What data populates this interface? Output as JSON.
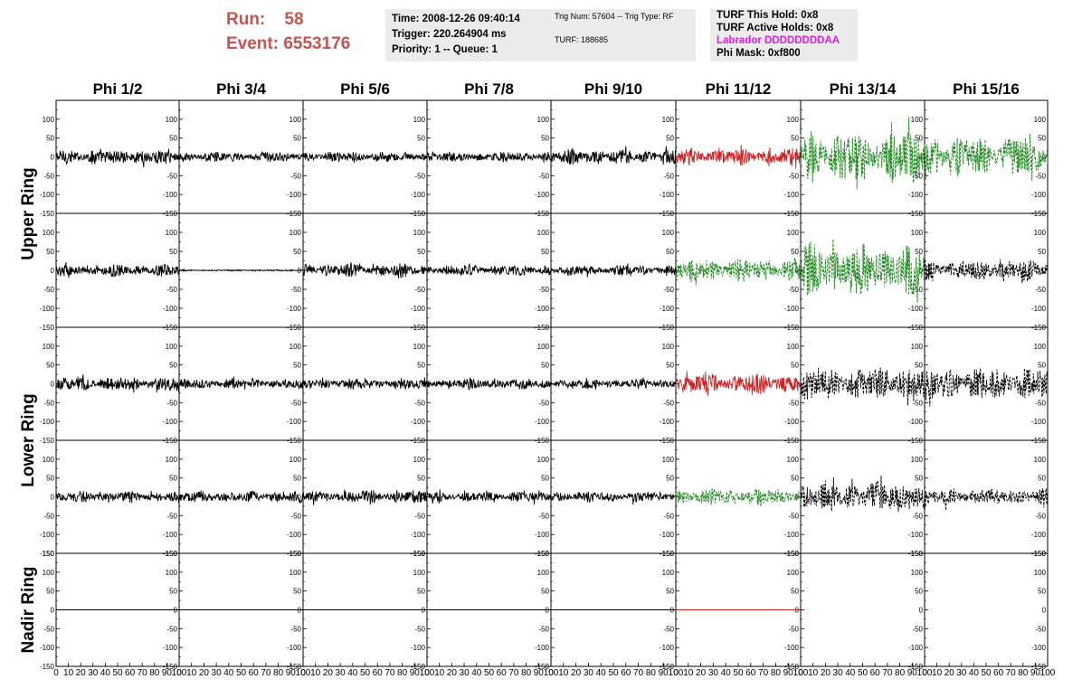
{
  "header": {
    "run_label": "Run:",
    "run_value": "58",
    "event_label": "Event:",
    "event_value": "6553176"
  },
  "info1": {
    "time": "Time: 2008-12-26 09:40:14",
    "trigger": "Trigger: 220.264904 ms",
    "priority": "Priority: 1 -- Queue: 1"
  },
  "info2": {
    "trig": "Trig Num: 57604 -- Trig Type: RF",
    "turf": "TURF: 188685"
  },
  "info3": {
    "hold": "TURF This Hold: 0x8",
    "active": "TURF Active Holds: 0x8",
    "labrador": "Labrador DDDDDDDDAA",
    "phimask": "Phi Mask: 0xf800"
  },
  "colors": {
    "header_red": "#c9534f",
    "trace_black": "#000000",
    "trace_red": "#cc2222",
    "trace_green": "#1e8a1e",
    "labrador_magenta": "#e020e0"
  },
  "chart_data": {
    "type": "line",
    "columns": [
      "Phi 1/2",
      "Phi 3/4",
      "Phi 5/6",
      "Phi 7/8",
      "Phi 9/10",
      "Phi 11/12",
      "Phi 13/14",
      "Phi 15/16"
    ],
    "rows": [
      "Upper Ring",
      "Upper Ring",
      "Lower Ring",
      "Lower Ring",
      "Nadir Ring"
    ],
    "ylim": [
      -150,
      150
    ],
    "xlim": [
      0,
      100
    ],
    "y_ticks": [
      -150,
      -100,
      -50,
      0,
      50,
      100,
      150
    ],
    "x_ticks": [
      0,
      10,
      20,
      30,
      40,
      50,
      60,
      70,
      80,
      90,
      100
    ],
    "x_tick_labels": [
      "0",
      "10",
      "20",
      "30",
      "40",
      "50",
      "60",
      "70",
      "80",
      "90",
      "100"
    ],
    "traces": [
      [
        {
          "style": "black",
          "amp": 20
        },
        {
          "style": "black",
          "amp": 13
        },
        {
          "style": "black",
          "amp": 14
        },
        {
          "style": "black",
          "amp": 14
        },
        {
          "style": "black",
          "amp": 20
        },
        {
          "style": "red",
          "amp": 22
        },
        {
          "style": "green",
          "amp": 70
        },
        {
          "style": "green",
          "amp": 55
        }
      ],
      [
        {
          "style": "black",
          "amp": 16
        },
        {
          "style": "black",
          "amp": 2
        },
        {
          "style": "black",
          "amp": 18
        },
        {
          "style": "black",
          "amp": 15
        },
        {
          "style": "black",
          "amp": 14
        },
        {
          "style": "green",
          "amp": 30
        },
        {
          "style": "green",
          "amp": 70
        },
        {
          "style": "dashblack",
          "amp": 28
        }
      ],
      [
        {
          "style": "black",
          "amp": 18
        },
        {
          "style": "black",
          "amp": 14
        },
        {
          "style": "black",
          "amp": 15
        },
        {
          "style": "black",
          "amp": 14
        },
        {
          "style": "black",
          "amp": 13
        },
        {
          "style": "red",
          "amp": 28
        },
        {
          "style": "dashblack",
          "amp": 45
        },
        {
          "style": "dashblack",
          "amp": 45
        }
      ],
      [
        {
          "style": "black",
          "amp": 15
        },
        {
          "style": "black",
          "amp": 16
        },
        {
          "style": "black",
          "amp": 17
        },
        {
          "style": "black",
          "amp": 14
        },
        {
          "style": "black",
          "amp": 14
        },
        {
          "style": "green",
          "amp": 22
        },
        {
          "style": "dashblack",
          "amp": 40
        },
        {
          "style": "dashblack",
          "amp": 22
        }
      ],
      [
        {
          "style": "black",
          "amp": 0
        },
        {
          "style": "black",
          "amp": 0
        },
        {
          "style": "black",
          "amp": 0
        },
        {
          "style": "black",
          "amp": 0
        },
        {
          "style": "black",
          "amp": 0
        },
        {
          "style": "red",
          "amp": 0
        },
        {
          "style": "none",
          "amp": 0
        },
        {
          "style": "none",
          "amp": 0
        }
      ]
    ]
  }
}
